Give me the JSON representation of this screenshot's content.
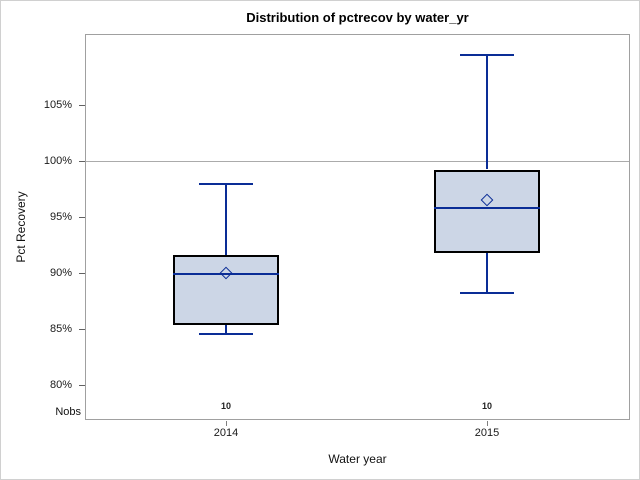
{
  "window": {
    "background": "#ffffff",
    "outer_border_color": "#d0d0d0"
  },
  "chart_data": {
    "type": "boxplot",
    "title": "Distribution of pctrecov by water_yr",
    "xlabel": "Water year",
    "ylabel": "Pct Recovery",
    "categories": [
      "2014",
      "2015"
    ],
    "series": [
      {
        "category": "2014",
        "nobs": "10",
        "whisker_low": 84.6,
        "q1": 85.4,
        "median": 89.9,
        "mean": 90.0,
        "q3": 91.6,
        "whisker_high": 97.9
      },
      {
        "category": "2015",
        "nobs": "10",
        "whisker_low": 88.2,
        "q1": 91.8,
        "median": 95.8,
        "mean": 96.5,
        "q3": 99.2,
        "whisker_high": 109.4
      }
    ],
    "nobs_label": "Nobs",
    "yticks": [
      {
        "value": 105,
        "label": "105%"
      },
      {
        "value": 100,
        "label": "100%"
      },
      {
        "value": 95,
        "label": "95%"
      },
      {
        "value": 90,
        "label": "90%"
      },
      {
        "value": 85,
        "label": "85%"
      },
      {
        "value": 80,
        "label": "80%"
      }
    ],
    "ylim": [
      76.9,
      111.3
    ],
    "reference_line_y": 100,
    "grid": "off",
    "legend": "none",
    "colors": {
      "box_fill": "#ccd6e6",
      "box_border": "#000000",
      "whisker_line": "#0a2d96",
      "reference_line": "#ababab",
      "frame_border": "#a0a0a0",
      "tick_color": "#616161",
      "text_color": "#111111"
    }
  }
}
